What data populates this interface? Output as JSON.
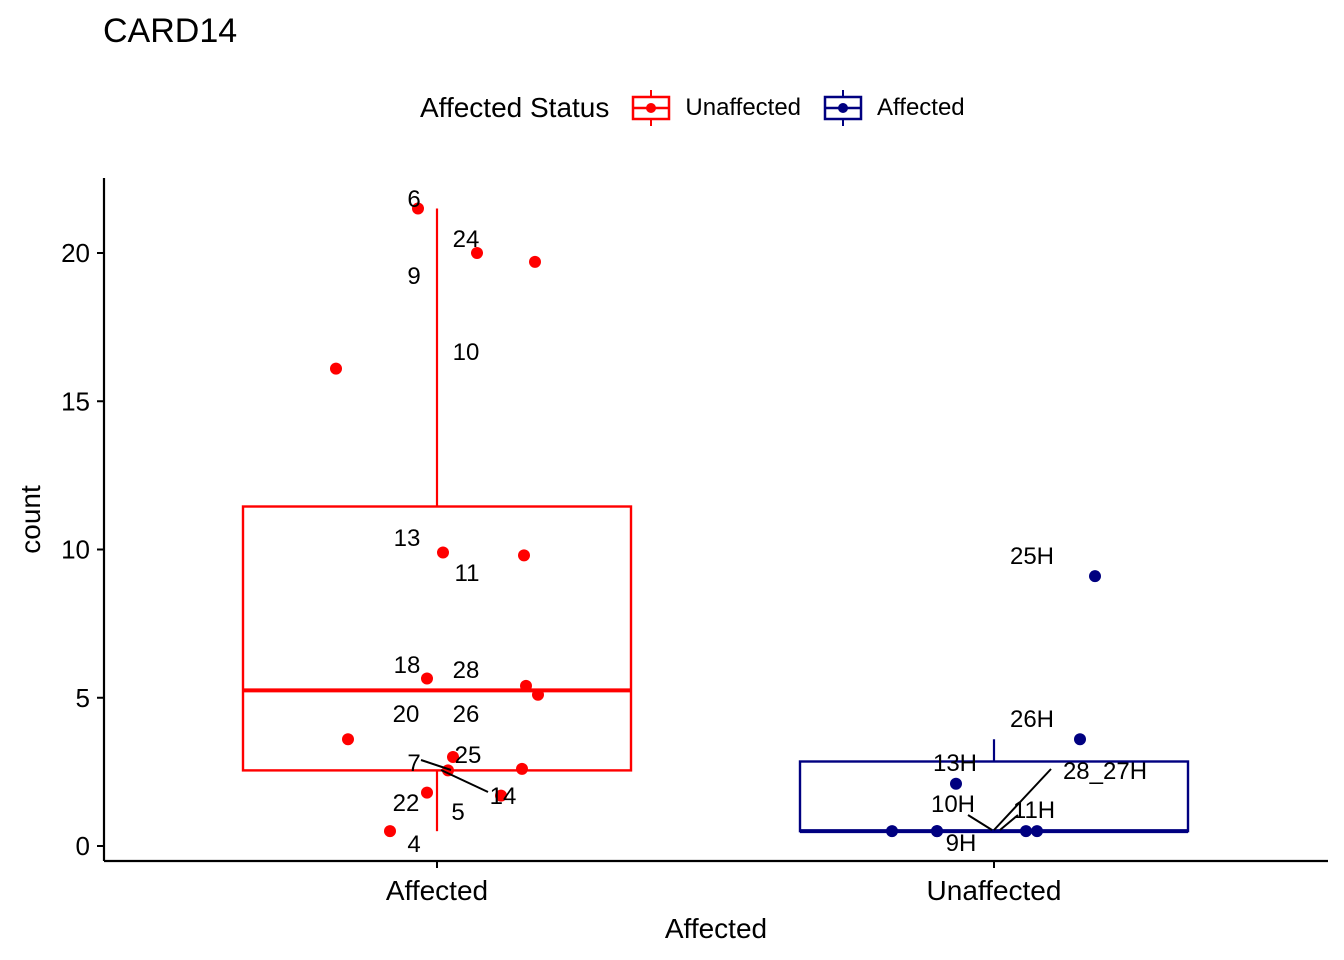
{
  "chart_data": {
    "type": "box",
    "title": "CARD14",
    "xlabel": "Affected",
    "ylabel": "count",
    "ylim": [
      -0.5,
      22.5
    ],
    "yticks": [
      0,
      5,
      10,
      15,
      20
    ],
    "categories": [
      "Affected",
      "Unaffected"
    ],
    "grid": false,
    "legend": {
      "title": "Affected Status",
      "position": "top",
      "entries": [
        {
          "label": "Unaffected",
          "color": "#FF0000"
        },
        {
          "label": "Affected",
          "color": "#000080"
        }
      ]
    },
    "series": [
      {
        "category": "Affected",
        "color": "#FF0000",
        "box": {
          "min": 0.5,
          "q1": 2.55,
          "median": 5.25,
          "q3": 11.45,
          "max": 21.5
        },
        "points": [
          {
            "label": "6",
            "y": 21.5
          },
          {
            "label": "24",
            "y": 20.0
          },
          {
            "label": "9",
            "y": 19.7
          },
          {
            "label": "10",
            "y": 16.1
          },
          {
            "label": "13",
            "y": 9.9
          },
          {
            "label": "11",
            "y": 9.8
          },
          {
            "label": "18",
            "y": 5.4
          },
          {
            "label": "28",
            "y": 5.1
          },
          {
            "label": "20",
            "y": 5.65
          },
          {
            "label": "26",
            "y": 3.6
          },
          {
            "label": "7",
            "y": 2.55
          },
          {
            "label": "25",
            "y": 3.0
          },
          {
            "label": "14",
            "y": 1.7
          },
          {
            "label": "22",
            "y": 1.8
          },
          {
            "label": "5",
            "y": 2.6
          },
          {
            "label": "4",
            "y": 0.5
          }
        ]
      },
      {
        "category": "Unaffected",
        "color": "#000080",
        "box": {
          "min": 0.5,
          "q1": 0.5,
          "median": 0.5,
          "q3": 2.85,
          "max": 3.6
        },
        "points": [
          {
            "label": "25H",
            "y": 9.1
          },
          {
            "label": "26H",
            "y": 3.6
          },
          {
            "label": "13H",
            "y": 2.1
          },
          {
            "label": "28_27H",
            "y": 0.5
          },
          {
            "label": "10H",
            "y": 0.5
          },
          {
            "label": "11H",
            "y": 0.5
          },
          {
            "label": "9H",
            "y": 0.5
          },
          {
            "label": "",
            "y": 0.5
          }
        ]
      }
    ]
  }
}
